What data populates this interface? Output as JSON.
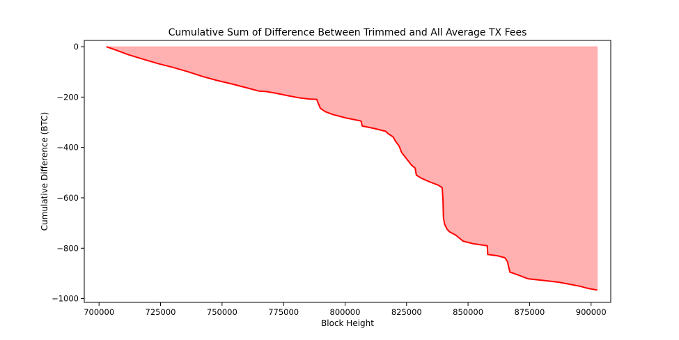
{
  "chart_data": {
    "type": "area",
    "title": "Cumulative Sum of Difference Between Trimmed and All Average TX Fees",
    "xlabel": "Block Height",
    "ylabel": "Cumulative Difference (BTC)",
    "xlim": [
      694000,
      908000
    ],
    "ylim": [
      -1015,
      25
    ],
    "xticks": [
      700000,
      725000,
      750000,
      775000,
      800000,
      825000,
      850000,
      875000,
      900000
    ],
    "yticks": [
      0,
      -200,
      -400,
      -600,
      -800,
      -1000
    ],
    "grid": false,
    "colors": {
      "line": "#ff0000",
      "fill": "#ffb0b0"
    },
    "series": [
      {
        "name": "Cumulative Difference",
        "x": [
          703000,
          707000,
          712000,
          718000,
          724000,
          730000,
          736000,
          742000,
          748000,
          754000,
          760000,
          765000,
          768000,
          772000,
          777000,
          782000,
          786000,
          788500,
          789000,
          790000,
          792000,
          795000,
          800000,
          806500,
          807000,
          812000,
          816500,
          817500,
          819500,
          820500,
          822000,
          823000,
          825000,
          827000,
          828500,
          829000,
          831000,
          834000,
          838000,
          839500,
          839800,
          840000,
          840500,
          841500,
          842500,
          845000,
          848000,
          852000,
          857800,
          858000,
          862000,
          865000,
          866000,
          867000,
          870000,
          874000,
          875000,
          880000,
          887000,
          893000,
          896000,
          897000,
          899000,
          902500
        ],
        "y": [
          0,
          -14,
          -32,
          -50,
          -67,
          -82,
          -99,
          -118,
          -134,
          -148,
          -163,
          -176,
          -178,
          -185,
          -195,
          -204,
          -208,
          -209,
          -222,
          -245,
          -258,
          -269,
          -282,
          -295,
          -315,
          -325,
          -336,
          -345,
          -358,
          -375,
          -395,
          -420,
          -445,
          -470,
          -482,
          -510,
          -522,
          -535,
          -550,
          -560,
          -610,
          -680,
          -705,
          -725,
          -735,
          -748,
          -772,
          -782,
          -790,
          -825,
          -830,
          -838,
          -853,
          -895,
          -905,
          -920,
          -922,
          -927,
          -935,
          -946,
          -952,
          -955,
          -960,
          -966
        ]
      }
    ]
  }
}
